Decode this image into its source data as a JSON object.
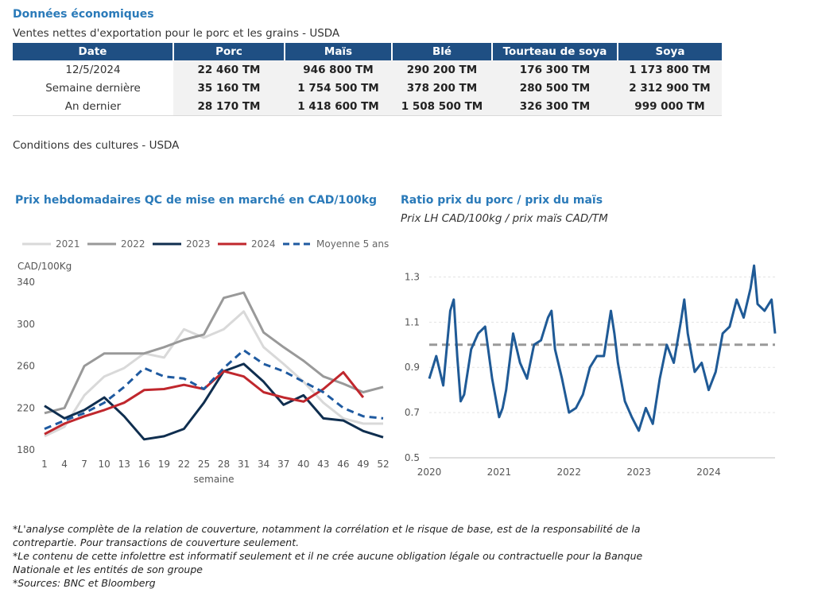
{
  "header": {
    "section_title": "Données économiques",
    "table_subtitle": "Ventes nettes d'exportation pour le porc et les grains - USDA"
  },
  "export_table": {
    "columns": [
      "Date",
      "Porc",
      "Maïs",
      "Blé",
      "Tourteau de soya",
      "Soya"
    ],
    "rows": [
      [
        "12/5/2024",
        "22 460 TM",
        "946 800 TM",
        "290 200 TM",
        "176 300 TM",
        "1 173 800 TM"
      ],
      [
        "Semaine dernière",
        "35 160 TM",
        "1 754 500 TM",
        "378 200 TM",
        "280 500 TM",
        "2 312 900 TM"
      ],
      [
        "An dernier",
        "28 170 TM",
        "1 418 600 TM",
        "1 508 500 TM",
        "326 300 TM",
        "999 000 TM"
      ]
    ]
  },
  "crop_conditions_title": "Conditions des cultures - USDA",
  "left_chart_title": "Prix hebdomadaires QC de mise en marché en CAD/100kg",
  "right_chart_title": "Ratio prix du porc / prix du maïs",
  "right_chart_subtitle": "Prix LH CAD/100kg / prix maïs CAD/TM",
  "notes": [
    "*L'analyse complète de la relation de couverture, notamment la corrélation et le risque de base, est de la responsabilité de la contrepartie. Pour transactions de couverture seulement.",
    "*Le contenu de cette infolettre est informatif seulement et il ne crée aucune obligation légale ou contractuelle pour la Banque Nationale et les entités de son groupe",
    "*Sources: BNC et Bloomberg"
  ],
  "chart_data": [
    {
      "type": "line",
      "title": "Prix hebdomadaires QC de mise en marché en CAD/100kg",
      "ylabel": "CAD/100Kg",
      "xlabel": "semaine",
      "ylim": [
        180,
        340
      ],
      "xlim": [
        1,
        52
      ],
      "yticks": [
        180,
        220,
        260,
        300,
        340
      ],
      "xticks": [
        1,
        4,
        7,
        10,
        13,
        16,
        19,
        22,
        25,
        28,
        31,
        34,
        37,
        40,
        43,
        46,
        49,
        52
      ],
      "legend_position": "top",
      "x": [
        1,
        4,
        7,
        10,
        13,
        16,
        19,
        22,
        25,
        28,
        31,
        34,
        37,
        40,
        43,
        46,
        49,
        52
      ],
      "series": [
        {
          "name": "2021",
          "color": "#d9d9d9",
          "dash": "solid",
          "values": [
            193,
            202,
            232,
            250,
            258,
            272,
            268,
            295,
            287,
            295,
            312,
            278,
            262,
            245,
            225,
            210,
            205,
            205
          ]
        },
        {
          "name": "2022",
          "color": "#999999",
          "dash": "solid",
          "values": [
            215,
            220,
            260,
            272,
            272,
            272,
            278,
            285,
            290,
            325,
            330,
            292,
            278,
            265,
            250,
            243,
            235,
            240
          ]
        },
        {
          "name": "2023",
          "color": "#0f2e4f",
          "dash": "solid",
          "values": [
            222,
            210,
            218,
            230,
            212,
            190,
            193,
            200,
            225,
            255,
            262,
            245,
            223,
            232,
            210,
            208,
            198,
            192
          ]
        },
        {
          "name": "2024",
          "color": "#c0272d",
          "dash": "solid",
          "values": [
            195,
            205,
            212,
            218,
            225,
            237,
            238,
            242,
            238,
            255,
            250,
            235,
            230,
            226,
            238,
            254,
            230,
            null
          ]
        },
        {
          "name": "Moyenne 5 ans",
          "color": "#1f5aa0",
          "dash": "dashed",
          "values": [
            200,
            208,
            215,
            225,
            240,
            258,
            250,
            248,
            238,
            258,
            275,
            262,
            255,
            245,
            235,
            220,
            212,
            210
          ]
        }
      ]
    },
    {
      "type": "line",
      "title": "Ratio prix du porc / prix du maïs",
      "subtitle": "Prix LH CAD/100kg / prix maïs CAD/TM",
      "ylim": [
        0.5,
        1.4
      ],
      "yticks": [
        0.5,
        0.7,
        0.9,
        1.1,
        1.3
      ],
      "xticks": [
        "2020",
        "2021",
        "2022",
        "2023",
        "2024"
      ],
      "grid": true,
      "reference_line": 1.0,
      "series": [
        {
          "name": "",
          "color": "#1f5a96",
          "x": [
            2020.0,
            2020.1,
            2020.2,
            2020.3,
            2020.35,
            2020.4,
            2020.45,
            2020.5,
            2020.6,
            2020.7,
            2020.8,
            2020.9,
            2021.0,
            2021.05,
            2021.1,
            2021.2,
            2021.3,
            2021.4,
            2021.5,
            2021.6,
            2021.7,
            2021.75,
            2021.8,
            2021.9,
            2022.0,
            2022.1,
            2022.2,
            2022.3,
            2022.4,
            2022.5,
            2022.6,
            2022.65,
            2022.7,
            2022.8,
            2022.9,
            2023.0,
            2023.1,
            2023.2,
            2023.3,
            2023.4,
            2023.5,
            2023.6,
            2023.65,
            2023.7,
            2023.8,
            2023.9,
            2024.0,
            2024.1,
            2024.2,
            2024.3,
            2024.4,
            2024.5,
            2024.6,
            2024.65,
            2024.7,
            2024.8,
            2024.9,
            2024.95
          ],
          "values": [
            0.85,
            0.95,
            0.82,
            1.15,
            1.2,
            0.95,
            0.75,
            0.78,
            0.98,
            1.05,
            1.08,
            0.85,
            0.68,
            0.72,
            0.8,
            1.05,
            0.92,
            0.85,
            1.0,
            1.02,
            1.12,
            1.15,
            0.98,
            0.85,
            0.7,
            0.72,
            0.78,
            0.9,
            0.95,
            0.95,
            1.15,
            1.05,
            0.92,
            0.75,
            0.68,
            0.62,
            0.72,
            0.65,
            0.85,
            1.0,
            0.92,
            1.1,
            1.2,
            1.05,
            0.88,
            0.92,
            0.8,
            0.88,
            1.05,
            1.08,
            1.2,
            1.12,
            1.25,
            1.35,
            1.18,
            1.15,
            1.2,
            1.05
          ]
        }
      ]
    }
  ]
}
